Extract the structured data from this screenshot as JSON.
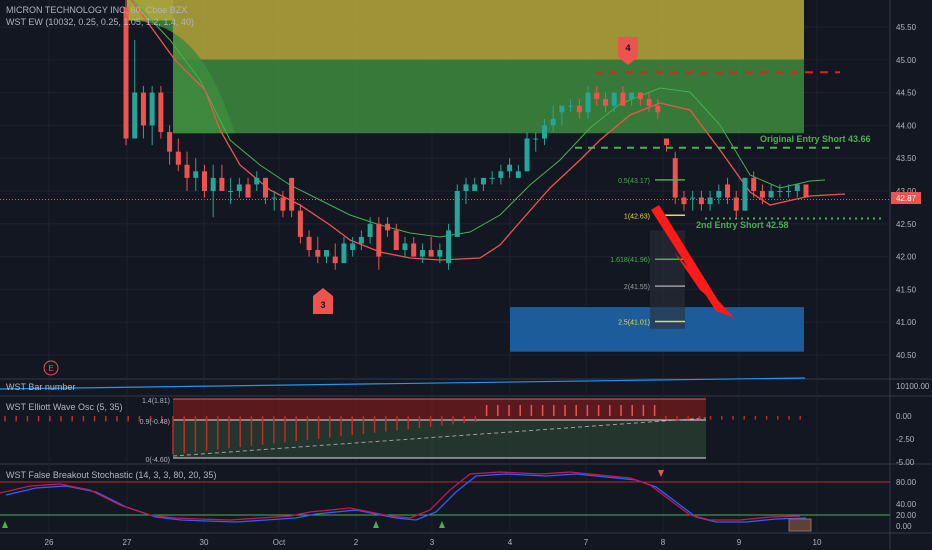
{
  "header": {
    "symbol_line": "MICRON TECHNOLOGY INC, 60, Cboe BZX",
    "indicator_line": "WST EW (10032, 0.25, 0.25, 1.05, 1.2, 1.4, 40)"
  },
  "panes": {
    "bar_number": "WST Bar number",
    "oscillator": "WST Elliott Wave Osc (5, 35)",
    "stochastic": "WST False Breakout Stochastic (14, 3, 3, 80, 20, 35)"
  },
  "wave_labels": [
    {
      "text": "3"
    },
    {
      "text": "4"
    }
  ],
  "annotations": {
    "original_entry": "Original Entry Short 43.66",
    "second_entry": "2nd Entry Short 42.58",
    "price_tag": "42.87",
    "event": "E"
  },
  "chart_data": {
    "type": "candlestick",
    "x_ticks": [
      "26",
      "27",
      "30",
      "Oct",
      "2",
      "3",
      "4",
      "7",
      "8",
      "9",
      "10"
    ],
    "y_ticks": [
      "45.50",
      "45.00",
      "44.50",
      "44.00",
      "43.50",
      "43.00",
      "42.50",
      "42.00",
      "41.50",
      "41.00",
      "40.50"
    ],
    "ylim": [
      40.3,
      46.0
    ],
    "last_price": 42.87,
    "candles": [
      {
        "o": 45.8,
        "h": 46.0,
        "l": 43.7,
        "c": 43.8
      },
      {
        "o": 43.8,
        "h": 45.3,
        "l": 43.8,
        "c": 44.5
      },
      {
        "o": 44.5,
        "h": 44.6,
        "l": 43.8,
        "c": 44.0
      },
      {
        "o": 44.0,
        "h": 44.6,
        "l": 43.7,
        "c": 44.5
      },
      {
        "o": 44.5,
        "h": 44.6,
        "l": 43.8,
        "c": 43.9
      },
      {
        "o": 43.9,
        "h": 44.0,
        "l": 43.4,
        "c": 43.6
      },
      {
        "o": 43.6,
        "h": 43.8,
        "l": 43.3,
        "c": 43.4
      },
      {
        "o": 43.4,
        "h": 43.6,
        "l": 43.0,
        "c": 43.2
      },
      {
        "o": 43.2,
        "h": 43.5,
        "l": 43.0,
        "c": 43.3
      },
      {
        "o": 43.3,
        "h": 43.4,
        "l": 42.9,
        "c": 43.0
      },
      {
        "o": 43.0,
        "h": 43.4,
        "l": 42.6,
        "c": 43.2
      },
      {
        "o": 43.2,
        "h": 43.4,
        "l": 43.0,
        "c": 43.0
      },
      {
        "o": 43.0,
        "h": 43.2,
        "l": 42.8,
        "c": 43.0
      },
      {
        "o": 43.0,
        "h": 43.2,
        "l": 42.9,
        "c": 43.1
      },
      {
        "o": 43.1,
        "h": 43.2,
        "l": 42.9,
        "c": 42.9
      },
      {
        "o": 43.1,
        "h": 43.3,
        "l": 43.0,
        "c": 43.2
      },
      {
        "o": 43.2,
        "h": 43.2,
        "l": 42.8,
        "c": 42.9
      },
      {
        "o": 42.9,
        "h": 43.0,
        "l": 42.7,
        "c": 42.9
      },
      {
        "o": 42.9,
        "h": 43.0,
        "l": 42.6,
        "c": 42.7
      },
      {
        "o": 43.2,
        "h": 43.2,
        "l": 42.6,
        "c": 42.7
      },
      {
        "o": 42.7,
        "h": 42.8,
        "l": 42.2,
        "c": 42.3
      },
      {
        "o": 42.3,
        "h": 42.4,
        "l": 42.0,
        "c": 42.1
      },
      {
        "o": 42.1,
        "h": 42.3,
        "l": 41.9,
        "c": 42.0
      },
      {
        "o": 42.0,
        "h": 42.1,
        "l": 41.9,
        "c": 42.1
      },
      {
        "o": 42.0,
        "h": 42.2,
        "l": 41.8,
        "c": 41.9
      },
      {
        "o": 41.9,
        "h": 42.3,
        "l": 41.9,
        "c": 42.2
      },
      {
        "o": 42.1,
        "h": 42.3,
        "l": 42.0,
        "c": 42.2
      },
      {
        "o": 42.2,
        "h": 42.4,
        "l": 42.1,
        "c": 42.3
      },
      {
        "o": 42.3,
        "h": 42.6,
        "l": 42.2,
        "c": 42.5
      },
      {
        "o": 42.5,
        "h": 42.6,
        "l": 41.8,
        "c": 42.0
      },
      {
        "o": 42.5,
        "h": 42.6,
        "l": 42.3,
        "c": 42.4
      },
      {
        "o": 42.4,
        "h": 42.5,
        "l": 42.1,
        "c": 42.1
      },
      {
        "o": 42.1,
        "h": 42.3,
        "l": 42.0,
        "c": 42.2
      },
      {
        "o": 42.2,
        "h": 42.3,
        "l": 42.0,
        "c": 42.0
      },
      {
        "o": 42.0,
        "h": 42.2,
        "l": 41.9,
        "c": 42.1
      },
      {
        "o": 42.1,
        "h": 42.3,
        "l": 42.0,
        "c": 42.0
      },
      {
        "o": 42.0,
        "h": 42.2,
        "l": 41.9,
        "c": 42.1
      },
      {
        "o": 41.9,
        "h": 42.5,
        "l": 41.8,
        "c": 42.4
      },
      {
        "o": 42.3,
        "h": 43.1,
        "l": 42.3,
        "c": 43.0
      },
      {
        "o": 43.0,
        "h": 43.2,
        "l": 42.8,
        "c": 43.1
      },
      {
        "o": 43.0,
        "h": 43.2,
        "l": 43.0,
        "c": 43.1
      },
      {
        "o": 43.1,
        "h": 43.2,
        "l": 43.0,
        "c": 43.2
      },
      {
        "o": 43.2,
        "h": 43.3,
        "l": 43.1,
        "c": 43.2
      },
      {
        "o": 43.2,
        "h": 43.4,
        "l": 43.1,
        "c": 43.3
      },
      {
        "o": 43.3,
        "h": 43.5,
        "l": 43.2,
        "c": 43.4
      },
      {
        "o": 43.2,
        "h": 43.4,
        "l": 43.2,
        "c": 43.3
      },
      {
        "o": 43.3,
        "h": 43.9,
        "l": 43.3,
        "c": 43.8
      },
      {
        "o": 43.8,
        "h": 43.9,
        "l": 43.6,
        "c": 43.8
      },
      {
        "o": 43.8,
        "h": 44.1,
        "l": 43.7,
        "c": 44.0
      },
      {
        "o": 44.0,
        "h": 44.3,
        "l": 43.9,
        "c": 44.1
      },
      {
        "o": 44.2,
        "h": 44.3,
        "l": 44.0,
        "c": 44.3
      },
      {
        "o": 44.3,
        "h": 44.4,
        "l": 44.2,
        "c": 44.3
      },
      {
        "o": 44.3,
        "h": 44.4,
        "l": 44.1,
        "c": 44.2
      },
      {
        "o": 44.2,
        "h": 44.6,
        "l": 44.1,
        "c": 44.5
      },
      {
        "o": 44.5,
        "h": 44.6,
        "l": 44.3,
        "c": 44.4
      },
      {
        "o": 44.4,
        "h": 44.5,
        "l": 44.2,
        "c": 44.3
      },
      {
        "o": 44.3,
        "h": 44.5,
        "l": 44.2,
        "c": 44.5
      },
      {
        "o": 44.5,
        "h": 44.6,
        "l": 44.3,
        "c": 44.3
      },
      {
        "o": 44.4,
        "h": 44.5,
        "l": 44.3,
        "c": 44.5
      },
      {
        "o": 44.5,
        "h": 44.5,
        "l": 44.3,
        "c": 44.4
      },
      {
        "o": 44.4,
        "h": 44.5,
        "l": 44.2,
        "c": 44.3
      },
      {
        "o": 44.3,
        "h": 44.4,
        "l": 44.1,
        "c": 44.2
      },
      {
        "o": 43.8,
        "h": 43.8,
        "l": 43.6,
        "c": 43.7
      },
      {
        "o": 43.5,
        "h": 43.6,
        "l": 42.8,
        "c": 42.9
      },
      {
        "o": 42.9,
        "h": 43.0,
        "l": 42.7,
        "c": 42.8
      },
      {
        "o": 42.9,
        "h": 43.0,
        "l": 42.7,
        "c": 42.9
      },
      {
        "o": 42.9,
        "h": 43.0,
        "l": 42.7,
        "c": 42.8
      },
      {
        "o": 42.8,
        "h": 43.0,
        "l": 42.7,
        "c": 42.9
      },
      {
        "o": 42.9,
        "h": 43.1,
        "l": 42.8,
        "c": 43.0
      },
      {
        "o": 43.1,
        "h": 43.2,
        "l": 42.8,
        "c": 42.9
      },
      {
        "o": 42.9,
        "h": 43.0,
        "l": 42.6,
        "c": 42.7
      },
      {
        "o": 42.7,
        "h": 43.2,
        "l": 42.7,
        "c": 43.2
      },
      {
        "o": 43.2,
        "h": 43.3,
        "l": 42.9,
        "c": 43.0
      },
      {
        "o": 43.0,
        "h": 43.1,
        "l": 42.8,
        "c": 42.9
      },
      {
        "o": 42.9,
        "h": 43.1,
        "l": 42.9,
        "c": 43.0
      },
      {
        "o": 43.0,
        "h": 43.1,
        "l": 42.9,
        "c": 43.0
      },
      {
        "o": 43.0,
        "h": 43.1,
        "l": 42.9,
        "c": 43.0
      },
      {
        "o": 43.0,
        "h": 43.1,
        "l": 42.9,
        "c": 43.1
      },
      {
        "o": 43.1,
        "h": 43.1,
        "l": 42.9,
        "c": 42.9
      }
    ],
    "fib_levels": [
      {
        "label": "0.5(43.17)",
        "value": 43.17,
        "color": "#4caf50"
      },
      {
        "label": "1(42.63)",
        "value": 42.63,
        "color": "#e8d84a"
      },
      {
        "label": "1.618(41.96)",
        "value": 41.96,
        "color": "#4caf50"
      },
      {
        "label": "2(41.55)",
        "value": 41.55,
        "color": "#9e9e9e"
      },
      {
        "label": "2.5(41.01)",
        "value": 41.01,
        "color": "#e8d84a"
      }
    ],
    "lines": {
      "original_entry": 43.66,
      "second_entry": 42.58,
      "wave4_level": 44.81
    },
    "osc": {
      "y_ticks": [
        "0.00",
        "-2.50",
        "-5.00"
      ],
      "box_labels": [
        "1.4(1.81)",
        "0.9(-0.48)",
        "0(-4.60)"
      ]
    },
    "stoch": {
      "y_ticks": [
        "80.00",
        "40.00",
        "20.00",
        "0.00"
      ]
    },
    "bar_number_tick": "10100.00",
    "colors": {
      "up": "#26a69a",
      "down": "#ef5350",
      "zone_yellow": "#b7a93a",
      "zone_green": "#3d8b3d",
      "zone_blue": "#1e64a8"
    }
  }
}
